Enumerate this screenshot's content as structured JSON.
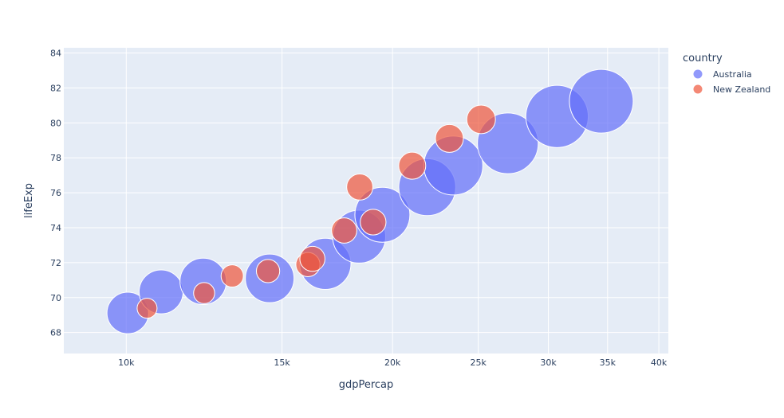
{
  "chart_data": {
    "type": "scatter",
    "subtype": "bubble",
    "xlabel": "gdpPercap",
    "ylabel": "lifeExp",
    "x_scale": "log",
    "xlim": [
      8500,
      41000
    ],
    "ylim": [
      66.8,
      84.3
    ],
    "x_ticks": [
      {
        "value": 10000,
        "label": "10k"
      },
      {
        "value": 15000,
        "label": "15k"
      },
      {
        "value": 20000,
        "label": "20k"
      },
      {
        "value": 25000,
        "label": "25k"
      },
      {
        "value": 30000,
        "label": "30k"
      },
      {
        "value": 35000,
        "label": "35k"
      },
      {
        "value": 40000,
        "label": "40k"
      }
    ],
    "y_ticks": [
      68,
      70,
      72,
      74,
      76,
      78,
      80,
      82,
      84
    ],
    "grid": true,
    "legend": {
      "title": "country",
      "placement": "top-right"
    },
    "background": "#e5ecf6",
    "series": [
      {
        "name": "Australia",
        "color": "#636efa",
        "points": [
          {
            "x": 10040,
            "y": 69.12,
            "size": 8691212
          },
          {
            "x": 10950,
            "y": 70.33,
            "size": 9712569
          },
          {
            "x": 12217,
            "y": 70.93,
            "size": 10794968
          },
          {
            "x": 14526,
            "y": 71.1,
            "size": 11872264
          },
          {
            "x": 16789,
            "y": 71.93,
            "size": 13177000
          },
          {
            "x": 18334,
            "y": 73.49,
            "size": 14074100
          },
          {
            "x": 19477,
            "y": 74.74,
            "size": 15184200
          },
          {
            "x": 21889,
            "y": 76.32,
            "size": 16257249
          },
          {
            "x": 23425,
            "y": 77.56,
            "size": 17481977
          },
          {
            "x": 26998,
            "y": 78.83,
            "size": 18565243
          },
          {
            "x": 30688,
            "y": 80.37,
            "size": 19546792
          },
          {
            "x": 34435,
            "y": 81.24,
            "size": 20434176
          }
        ]
      },
      {
        "name": "New Zealand",
        "color": "#ef553b",
        "points": [
          {
            "x": 10557,
            "y": 69.39,
            "size": 1994794
          },
          {
            "x": 12247,
            "y": 70.26,
            "size": 2229407
          },
          {
            "x": 13176,
            "y": 71.24,
            "size": 2488550
          },
          {
            "x": 14464,
            "y": 71.52,
            "size": 2728150
          },
          {
            "x": 16046,
            "y": 71.89,
            "size": 2929100
          },
          {
            "x": 16234,
            "y": 72.22,
            "size": 3164900
          },
          {
            "x": 17633,
            "y": 73.84,
            "size": 3210650
          },
          {
            "x": 19014,
            "y": 74.32,
            "size": 3317166
          },
          {
            "x": 18363,
            "y": 76.33,
            "size": 3437674
          },
          {
            "x": 21050,
            "y": 77.55,
            "size": 3676187
          },
          {
            "x": 23190,
            "y": 79.11,
            "size": 3908037
          },
          {
            "x": 25185,
            "y": 80.2,
            "size": 4115771
          }
        ]
      }
    ]
  }
}
